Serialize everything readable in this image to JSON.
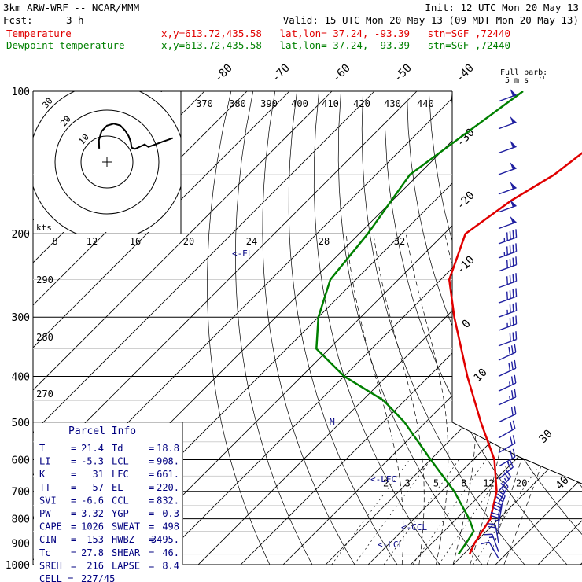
{
  "header": {
    "model": "3km ARW-WRF -- NCAR/MMM",
    "init": "Init: 12 UTC Mon 20 May 13",
    "fcst_label": "Fcst:",
    "fcst_hours": "3 h",
    "valid": "Valid: 15 UTC Mon 20 May 13 (09 MDT Mon 20 May 13)",
    "lines": [
      {
        "name": "Temperature",
        "info": "x,y=613.72,435.58   lat,lon= 37.24, -93.39   stn=SGF ,72440",
        "color": "#e00000"
      },
      {
        "name": "Dewpoint temperature",
        "info": "x,y=613.72,435.58   lat,lon= 37.24, -93.39   stn=SGF ,72440",
        "color": "#008000"
      }
    ]
  },
  "colors": {
    "temperature": "#e00000",
    "dewpoint": "#008000",
    "hodograph": "#000000",
    "labels": "#000080",
    "barbs": "#2020a0",
    "grid": "#000000"
  },
  "chart_data": {
    "type": "line",
    "pressure_levels": [
      "100",
      "200",
      "300",
      "400",
      "500",
      "600",
      "700",
      "800",
      "900",
      "1000"
    ],
    "isotherm_labels": [
      "-80",
      "-70",
      "-60",
      "-50",
      "-40",
      "-30",
      "-20",
      "-10",
      "0",
      "10",
      "30",
      "40"
    ],
    "theta_labels": [
      "370",
      "380",
      "390",
      "400",
      "410",
      "420",
      "430",
      "440",
      "290",
      "280",
      "270"
    ],
    "mixing_ratio_labels": [
      "2",
      "3",
      "5",
      "8",
      "12",
      "20"
    ],
    "series": [
      {
        "name": "Temperature",
        "points": [
          [
            100,
            -46
          ],
          [
            130,
            -46
          ],
          [
            150,
            -48
          ],
          [
            170,
            -52
          ],
          [
            200,
            -55
          ],
          [
            250,
            -48
          ],
          [
            300,
            -38
          ],
          [
            400,
            -21
          ],
          [
            500,
            -7
          ],
          [
            600,
            5
          ],
          [
            700,
            13
          ],
          [
            800,
            18
          ],
          [
            850,
            19
          ],
          [
            900,
            20
          ],
          [
            950,
            21.4
          ]
        ]
      },
      {
        "name": "Dewpoint temperature",
        "points": [
          [
            100,
            -75
          ],
          [
            150,
            -82
          ],
          [
            200,
            -78
          ],
          [
            250,
            -76
          ],
          [
            300,
            -70
          ],
          [
            350,
            -63
          ],
          [
            400,
            -50
          ],
          [
            450,
            -35
          ],
          [
            500,
            -25
          ],
          [
            600,
            -10
          ],
          [
            700,
            3
          ],
          [
            800,
            13
          ],
          [
            850,
            17
          ],
          [
            900,
            18
          ],
          [
            950,
            18.8
          ]
        ]
      }
    ],
    "annotations": [
      "<-EL",
      "<-LFC",
      "<-CCL",
      "<-LCL",
      "M"
    ],
    "hodograph": {
      "ring_labels": [
        "10",
        "20",
        "30"
      ],
      "units": "kts",
      "speed_axis": [
        "8",
        "12",
        "16",
        "20",
        "24",
        "28",
        "32"
      ]
    },
    "barb_note": {
      "line1": "Full barb:",
      "line2": "5 m s"
    },
    "parcel_info": {
      "title": "Parcel Info",
      "rows": [
        [
          "T",
          "=",
          "21.4",
          "Td",
          "=",
          "18.8"
        ],
        [
          "LI",
          "=",
          "-5.3",
          "LCL",
          "=",
          "908."
        ],
        [
          "K",
          "=",
          "31",
          "LFC",
          "=",
          "661."
        ],
        [
          "TT",
          "=",
          "57",
          "EL",
          "=",
          "220."
        ],
        [
          "SVI",
          "=",
          "-6.6",
          "CCL",
          "=",
          "832."
        ],
        [
          "PW",
          "=",
          "3.32",
          "YGP",
          "=",
          "0.3"
        ],
        [
          "CAPE",
          "=",
          "1026",
          "SWEAT",
          "=",
          "498"
        ],
        [
          "CIN",
          "=",
          "-153",
          "HWBZ",
          "=",
          "3495."
        ],
        [
          "Tc",
          "=",
          "27.8",
          "SHEAR",
          "=",
          "46."
        ],
        [
          "SREH",
          "=",
          "216",
          "LAPSE",
          "=",
          "8.4"
        ]
      ],
      "cell_label": "CELL =",
      "cell_value": "227/45"
    },
    "wind_barbs": [
      {
        "p": 105,
        "dir": 250,
        "spd": 26
      },
      {
        "p": 120,
        "dir": 250,
        "spd": 26
      },
      {
        "p": 135,
        "dir": 250,
        "spd": 26
      },
      {
        "p": 150,
        "dir": 250,
        "spd": 27
      },
      {
        "p": 165,
        "dir": 250,
        "spd": 27
      },
      {
        "p": 180,
        "dir": 250,
        "spd": 26
      },
      {
        "p": 195,
        "dir": 250,
        "spd": 25
      },
      {
        "p": 210,
        "dir": 250,
        "spd": 24
      },
      {
        "p": 225,
        "dir": 250,
        "spd": 23
      },
      {
        "p": 240,
        "dir": 250,
        "spd": 22
      },
      {
        "p": 260,
        "dir": 250,
        "spd": 21
      },
      {
        "p": 280,
        "dir": 250,
        "spd": 20
      },
      {
        "p": 300,
        "dir": 250,
        "spd": 19
      },
      {
        "p": 320,
        "dir": 250,
        "spd": 18
      },
      {
        "p": 345,
        "dir": 250,
        "spd": 17
      },
      {
        "p": 370,
        "dir": 245,
        "spd": 16
      },
      {
        "p": 400,
        "dir": 245,
        "spd": 15
      },
      {
        "p": 430,
        "dir": 245,
        "spd": 14
      },
      {
        "p": 460,
        "dir": 245,
        "spd": 13
      },
      {
        "p": 500,
        "dir": 245,
        "spd": 12
      },
      {
        "p": 540,
        "dir": 240,
        "spd": 11
      },
      {
        "p": 580,
        "dir": 240,
        "spd": 11
      },
      {
        "p": 620,
        "dir": 240,
        "spd": 11
      },
      {
        "p": 660,
        "dir": 230,
        "spd": 12
      },
      {
        "p": 700,
        "dir": 220,
        "spd": 13
      },
      {
        "p": 740,
        "dir": 210,
        "spd": 14
      },
      {
        "p": 780,
        "dir": 200,
        "spd": 15
      },
      {
        "p": 820,
        "dir": 190,
        "spd": 15
      },
      {
        "p": 860,
        "dir": 180,
        "spd": 14
      },
      {
        "p": 900,
        "dir": 170,
        "spd": 12
      },
      {
        "p": 940,
        "dir": 160,
        "spd": 9
      },
      {
        "p": 970,
        "dir": 150,
        "spd": 6
      }
    ]
  }
}
